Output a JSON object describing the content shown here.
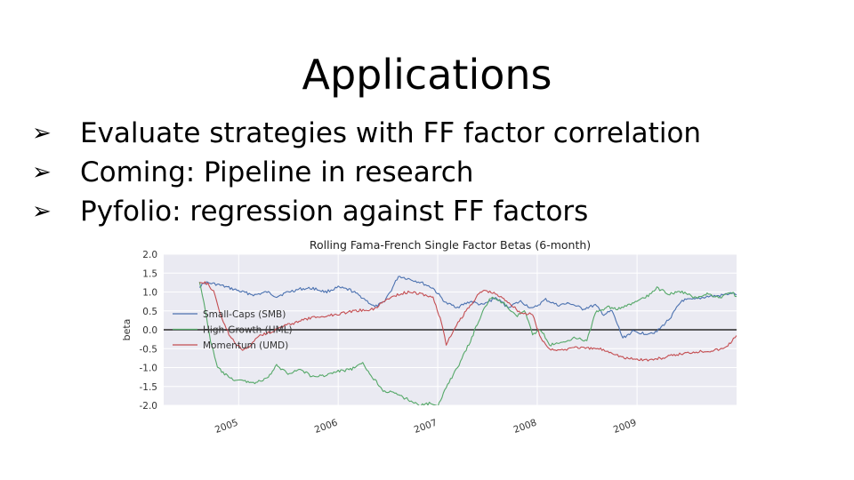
{
  "slide": {
    "title": "Applications",
    "bullet_marker": "➢",
    "bullets": [
      "Evaluate strategies with FF factor correlation",
      "Coming: Pipeline in research",
      "Pyfolio: regression against FF factors"
    ]
  },
  "chart_data": {
    "type": "line",
    "title": "Rolling Fama-French Single Factor Betas (6-month)",
    "ylabel": "beta",
    "xlabel": "",
    "ylim": [
      -2.0,
      2.0
    ],
    "xlim": [
      "2004-04-01",
      "2010-01-01"
    ],
    "yticks": [
      2.0,
      1.5,
      1.0,
      0.5,
      0.0,
      -0.5,
      -1.0,
      -1.5,
      -2.0
    ],
    "ytick_labels": [
      "2.0",
      "1.5",
      "1.0",
      "0.5",
      "0.0",
      "-0.5",
      "-1.0",
      "-1.5",
      "-2.0"
    ],
    "xtick_labels": [
      "2005",
      "2006",
      "2007",
      "2008",
      "2009"
    ],
    "xtick_dates": [
      "2005-01-01",
      "2006-01-01",
      "2007-01-01",
      "2008-01-01",
      "2009-01-01"
    ],
    "grid": true,
    "background": "#eaeaf2",
    "zero_line": 0.0,
    "legend": "middle-left",
    "series": [
      {
        "name": "Small-Caps (SMB)",
        "color": "#4c72b0",
        "points": [
          [
            "2004-08-10",
            1.15
          ],
          [
            "2004-09-01",
            1.25
          ],
          [
            "2004-10-15",
            1.2
          ],
          [
            "2004-12-01",
            1.1
          ],
          [
            "2005-01-15",
            1.0
          ],
          [
            "2005-03-01",
            0.92
          ],
          [
            "2005-04-15",
            1.0
          ],
          [
            "2005-05-20",
            0.88
          ],
          [
            "2005-07-01",
            1.0
          ],
          [
            "2005-08-15",
            1.08
          ],
          [
            "2005-10-01",
            1.1
          ],
          [
            "2005-11-15",
            1.0
          ],
          [
            "2006-01-01",
            1.12
          ],
          [
            "2006-02-15",
            1.05
          ],
          [
            "2006-04-01",
            0.85
          ],
          [
            "2006-05-15",
            0.6
          ],
          [
            "2006-06-15",
            0.72
          ],
          [
            "2006-07-15",
            1.05
          ],
          [
            "2006-08-10",
            1.42
          ],
          [
            "2006-09-15",
            1.35
          ],
          [
            "2006-11-01",
            1.25
          ],
          [
            "2006-12-15",
            1.1
          ],
          [
            "2007-02-01",
            0.7
          ],
          [
            "2007-03-15",
            0.6
          ],
          [
            "2007-05-01",
            0.75
          ],
          [
            "2007-06-15",
            0.65
          ],
          [
            "2007-08-01",
            0.85
          ],
          [
            "2007-09-15",
            0.6
          ],
          [
            "2007-11-01",
            0.75
          ],
          [
            "2007-12-15",
            0.55
          ],
          [
            "2008-02-01",
            0.8
          ],
          [
            "2008-03-15",
            0.65
          ],
          [
            "2008-05-01",
            0.7
          ],
          [
            "2008-06-15",
            0.55
          ],
          [
            "2008-08-01",
            0.65
          ],
          [
            "2008-09-01",
            0.4
          ],
          [
            "2008-10-01",
            0.5
          ],
          [
            "2008-11-10",
            -0.22
          ],
          [
            "2008-12-15",
            -0.05
          ],
          [
            "2009-02-01",
            -0.1
          ],
          [
            "2009-03-15",
            -0.05
          ],
          [
            "2009-05-01",
            0.3
          ],
          [
            "2009-06-15",
            0.78
          ],
          [
            "2009-08-01",
            0.8
          ],
          [
            "2009-09-15",
            0.88
          ],
          [
            "2009-11-01",
            0.9
          ],
          [
            "2009-12-15",
            0.97
          ],
          [
            "2010-01-01",
            0.92
          ]
        ]
      },
      {
        "name": "High-Growth (HML)",
        "color": "#55a868",
        "points": [
          [
            "2004-08-10",
            1.3
          ],
          [
            "2004-09-01",
            0.5
          ],
          [
            "2004-09-20",
            -0.3
          ],
          [
            "2004-10-15",
            -1.0
          ],
          [
            "2004-12-01",
            -1.3
          ],
          [
            "2005-01-15",
            -1.35
          ],
          [
            "2005-03-01",
            -1.4
          ],
          [
            "2005-04-15",
            -1.3
          ],
          [
            "2005-05-20",
            -0.95
          ],
          [
            "2005-07-01",
            -1.15
          ],
          [
            "2005-08-15",
            -1.05
          ],
          [
            "2005-10-01",
            -1.25
          ],
          [
            "2005-11-15",
            -1.2
          ],
          [
            "2006-01-01",
            -1.1
          ],
          [
            "2006-02-15",
            -1.05
          ],
          [
            "2006-04-01",
            -0.9
          ],
          [
            "2006-05-01",
            -1.2
          ],
          [
            "2006-06-15",
            -1.6
          ],
          [
            "2006-08-01",
            -1.7
          ],
          [
            "2006-09-15",
            -1.85
          ],
          [
            "2006-11-01",
            -2.0
          ],
          [
            "2006-12-01",
            -1.95
          ],
          [
            "2007-01-01",
            -2.05
          ],
          [
            "2007-02-01",
            -1.5
          ],
          [
            "2007-03-15",
            -1.0
          ],
          [
            "2007-05-01",
            -0.3
          ],
          [
            "2007-06-15",
            0.5
          ],
          [
            "2007-07-15",
            0.85
          ],
          [
            "2007-09-01",
            0.7
          ],
          [
            "2007-10-15",
            0.35
          ],
          [
            "2007-11-15",
            0.5
          ],
          [
            "2007-12-15",
            -0.1
          ],
          [
            "2008-01-15",
            0.0
          ],
          [
            "2008-02-15",
            -0.4
          ],
          [
            "2008-04-01",
            -0.35
          ],
          [
            "2008-05-15",
            -0.2
          ],
          [
            "2008-07-01",
            -0.3
          ],
          [
            "2008-08-01",
            0.45
          ],
          [
            "2008-09-15",
            0.6
          ],
          [
            "2008-11-01",
            0.55
          ],
          [
            "2008-12-15",
            0.7
          ],
          [
            "2009-02-01",
            0.85
          ],
          [
            "2009-03-15",
            1.1
          ],
          [
            "2009-05-01",
            0.95
          ],
          [
            "2009-06-15",
            1.0
          ],
          [
            "2009-08-01",
            0.85
          ],
          [
            "2009-09-15",
            0.95
          ],
          [
            "2009-11-01",
            0.85
          ],
          [
            "2009-12-15",
            1.0
          ],
          [
            "2010-01-01",
            0.88
          ]
        ]
      },
      {
        "name": "Momentum (UMD)",
        "color": "#c44e52",
        "points": [
          [
            "2004-08-10",
            1.28
          ],
          [
            "2004-09-10",
            1.22
          ],
          [
            "2004-10-01",
            1.0
          ],
          [
            "2004-11-01",
            0.3
          ],
          [
            "2004-12-01",
            -0.2
          ],
          [
            "2005-01-15",
            -0.55
          ],
          [
            "2005-02-15",
            -0.4
          ],
          [
            "2005-03-15",
            -0.15
          ],
          [
            "2005-05-01",
            -0.05
          ],
          [
            "2005-06-15",
            0.1
          ],
          [
            "2005-08-01",
            0.2
          ],
          [
            "2005-09-15",
            0.3
          ],
          [
            "2005-11-01",
            0.35
          ],
          [
            "2006-01-01",
            0.42
          ],
          [
            "2006-03-01",
            0.5
          ],
          [
            "2006-05-15",
            0.55
          ],
          [
            "2006-06-15",
            0.75
          ],
          [
            "2006-08-01",
            0.92
          ],
          [
            "2006-09-15",
            1.0
          ],
          [
            "2006-11-01",
            0.95
          ],
          [
            "2006-12-15",
            0.85
          ],
          [
            "2007-01-15",
            0.2
          ],
          [
            "2007-02-01",
            -0.4
          ],
          [
            "2007-03-01",
            0.0
          ],
          [
            "2007-04-15",
            0.5
          ],
          [
            "2007-06-01",
            0.95
          ],
          [
            "2007-06-20",
            1.05
          ],
          [
            "2007-08-01",
            0.95
          ],
          [
            "2007-09-15",
            0.75
          ],
          [
            "2007-11-01",
            0.45
          ],
          [
            "2007-12-15",
            0.4
          ],
          [
            "2008-01-15",
            -0.25
          ],
          [
            "2008-02-15",
            -0.5
          ],
          [
            "2008-04-01",
            -0.55
          ],
          [
            "2008-05-15",
            -0.45
          ],
          [
            "2008-07-01",
            -0.5
          ],
          [
            "2008-08-15",
            -0.5
          ],
          [
            "2008-10-01",
            -0.6
          ],
          [
            "2008-11-15",
            -0.75
          ],
          [
            "2009-01-01",
            -0.78
          ],
          [
            "2009-02-15",
            -0.8
          ],
          [
            "2009-04-01",
            -0.75
          ],
          [
            "2009-06-01",
            -0.65
          ],
          [
            "2009-08-01",
            -0.58
          ],
          [
            "2009-10-01",
            -0.55
          ],
          [
            "2009-11-15",
            -0.5
          ],
          [
            "2009-12-15",
            -0.3
          ],
          [
            "2010-01-01",
            -0.15
          ]
        ]
      }
    ]
  }
}
